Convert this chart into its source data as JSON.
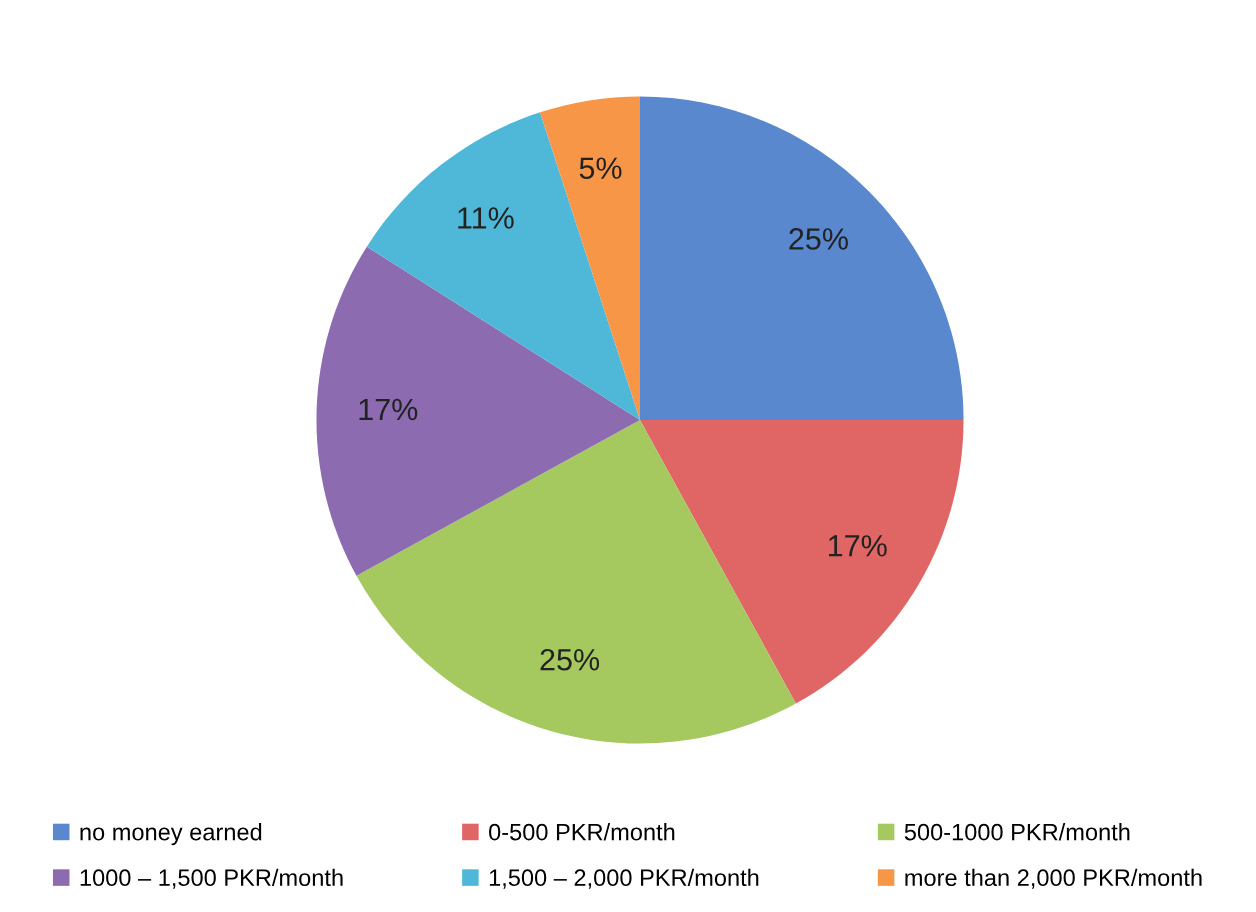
{
  "chart_data": {
    "type": "pie",
    "categories": [
      "no money earned",
      "0-500 PKR/month",
      "500-1000 PKR/month",
      "1000 – 1,500 PKR/month",
      "1,500 – 2,000 PKR/month",
      "more than 2,000 PKR/month"
    ],
    "values": [
      25,
      17,
      25,
      17,
      11,
      5
    ],
    "value_labels": [
      "25%",
      "17%",
      "25%",
      "17%",
      "11%",
      "5%"
    ],
    "colors": [
      "#5a88cf",
      "#e06666",
      "#a5c85f",
      "#8c6bb1",
      "#4fb8d9",
      "#f79646"
    ],
    "legend": "bottom"
  }
}
